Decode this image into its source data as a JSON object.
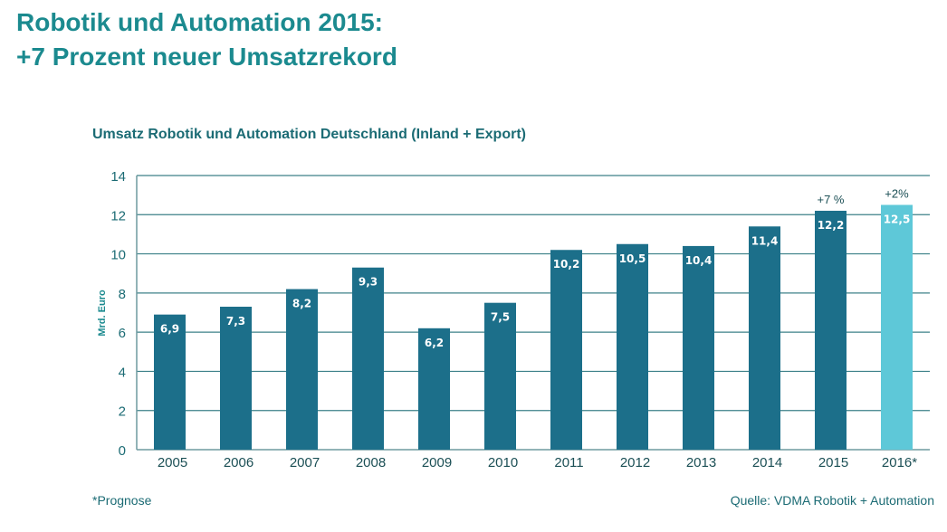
{
  "title_line1": "Robotik und Automation 2015:",
  "title_line2": "+7 Prozent neuer Umsatzrekord",
  "footnote": "*Prognose",
  "source": "Quelle: VDMA Robotik + Automation",
  "chart_data": {
    "type": "bar",
    "title": "Umsatz Robotik und Automation Deutschland (Inland + Export)",
    "ylabel": "Mrd. Euro",
    "xlabel": "",
    "ylim": [
      0,
      14
    ],
    "yticks": [
      0,
      2,
      4,
      6,
      8,
      10,
      12,
      14
    ],
    "grid": true,
    "categories": [
      "2005",
      "2006",
      "2007",
      "2008",
      "2009",
      "2010",
      "2011",
      "2012",
      "2013",
      "2014",
      "2015",
      "2016*"
    ],
    "values": [
      6.9,
      7.3,
      8.2,
      9.3,
      6.2,
      7.5,
      10.2,
      10.5,
      10.4,
      11.4,
      12.2,
      12.5
    ],
    "data_labels": [
      "6,9",
      "7,3",
      "8,2",
      "9,3",
      "6,2",
      "7,5",
      "10,2",
      "10,5",
      "10,4",
      "11,4",
      "12,2",
      "12,5"
    ],
    "annotations": [
      {
        "category": "2015",
        "text": "+7 %"
      },
      {
        "category": "2016*",
        "text": "+2%"
      }
    ],
    "colors": {
      "bar": "#1c6f8a",
      "forecast_bar": "#5ec8d8",
      "grid": "#1b6b74",
      "text": "#1b6b74"
    }
  }
}
